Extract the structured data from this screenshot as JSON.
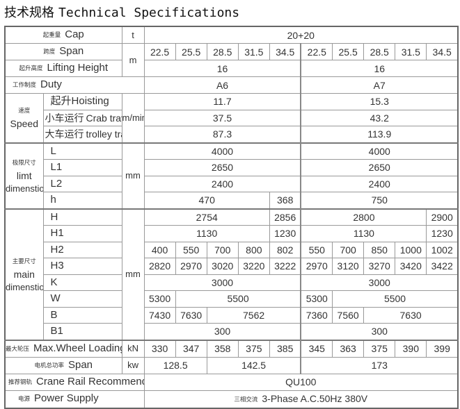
{
  "title": {
    "zh": "技术规格",
    "en": "Technical Specifications"
  },
  "cap": {
    "zh": "起重量",
    "en": "Cap",
    "unit": "t",
    "values": [
      "20+20"
    ]
  },
  "span": {
    "zh": "跨度",
    "en": "Span",
    "unit": "m",
    "values": [
      "22.5",
      "25.5",
      "28.5",
      "31.5",
      "34.5",
      "22.5",
      "25.5",
      "28.5",
      "31.5",
      "34.5"
    ]
  },
  "lifting_height": {
    "zh": "起升高度",
    "en": "Lifting Height",
    "values": [
      "16",
      "16"
    ]
  },
  "duty": {
    "zh": "工作制度",
    "en": "Duty",
    "values": [
      "A6",
      "A7"
    ]
  },
  "speed": {
    "zh": "速度",
    "en": "Speed",
    "unit": "m/min",
    "items": [
      {
        "zh": "起升",
        "en": "Hoisting",
        "values": [
          "11.7",
          "15.3"
        ]
      },
      {
        "zh": "小车运行",
        "en": "Crab travelling",
        "values": [
          "37.5",
          "43.2"
        ]
      },
      {
        "zh": "大车运行",
        "en": "trolley travelling",
        "values": [
          "87.3",
          "113.9"
        ]
      }
    ]
  },
  "limit": {
    "zh": "极限尺寸",
    "en1": "limt",
    "en2": "dimenstion",
    "unit": "mm",
    "items": [
      {
        "label": "L",
        "values": [
          "4000",
          "4000"
        ]
      },
      {
        "label": "L1",
        "values": [
          "2650",
          "2650"
        ]
      },
      {
        "label": "L2",
        "values": [
          "2400",
          "2400"
        ]
      },
      {
        "label": "h",
        "values": [
          "470",
          "368",
          "750"
        ]
      }
    ]
  },
  "main": {
    "zh": "主要尺寸",
    "en1": "main",
    "en2": "dimenstion",
    "unit": "mm",
    "items": [
      {
        "label": "H",
        "values": [
          "2754",
          "2856",
          "2800",
          "2900"
        ]
      },
      {
        "label": "H1",
        "values": [
          "1130",
          "1230",
          "1130",
          "1230"
        ]
      },
      {
        "label": "H2",
        "values": [
          "400",
          "550",
          "700",
          "800",
          "802",
          "550",
          "700",
          "850",
          "1000",
          "1002"
        ]
      },
      {
        "label": "H3",
        "values": [
          "2820",
          "2970",
          "3020",
          "3220",
          "3222",
          "2970",
          "3120",
          "3270",
          "3420",
          "3422"
        ]
      },
      {
        "label": "K",
        "values": [
          "3000",
          "3000"
        ]
      },
      {
        "label": "W",
        "values": [
          "5300",
          "5500",
          "5300",
          "5500"
        ]
      },
      {
        "label": "B",
        "values": [
          "7430",
          "7630",
          "7562",
          "7360",
          "7560",
          "7630"
        ]
      },
      {
        "label": "B1",
        "values": [
          "300",
          "300"
        ]
      }
    ]
  },
  "wheel_loading": {
    "zh": "最大轮压",
    "en": "Max.Wheel Loading",
    "unit": "kN",
    "values": [
      "330",
      "347",
      "358",
      "375",
      "385",
      "345",
      "363",
      "375",
      "390",
      "399"
    ]
  },
  "motor_power": {
    "zh": "电机总功率",
    "en": "Span",
    "unit": "kw",
    "values": [
      "128.5",
      "142.5",
      "173"
    ]
  },
  "rail": {
    "zh": "推荐钢轨",
    "en": "Crane Rail Recommended",
    "values": [
      "QU100"
    ]
  },
  "power_supply": {
    "zh": "电源",
    "en": "Power Supply",
    "value_zh": "三相交流",
    "value": "3-Phase A.C.50Hz 380V"
  }
}
